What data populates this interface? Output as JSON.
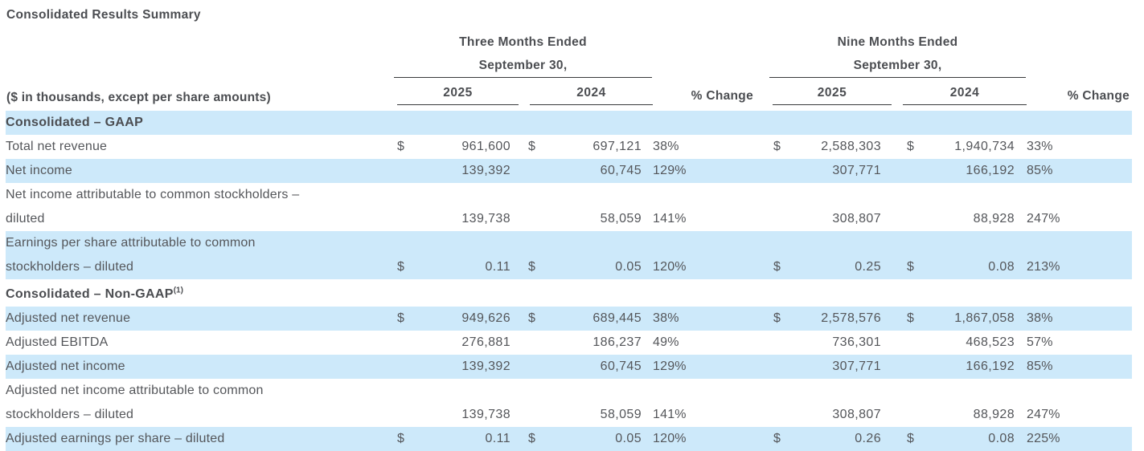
{
  "title": "Consolidated Results Summary",
  "row_label_header": "($ in thousands, except per share amounts)",
  "colors": {
    "stripe": "#cde9fa",
    "text": "#54565a",
    "heading_text": "#4b4d51",
    "rule": "#38393b"
  },
  "column_groups": [
    {
      "line1": "Three Months Ended",
      "line2": "September 30,",
      "years": [
        "2025",
        "2024"
      ],
      "pct_label": "% Change"
    },
    {
      "line1": "Nine Months Ended",
      "line2": "September 30,",
      "years": [
        "2025",
        "2024"
      ],
      "pct_label": "% Change"
    }
  ],
  "table": {
    "rows": [
      {
        "type": "section",
        "label": "Consolidated – GAAP",
        "sup": "",
        "shaded": true
      },
      {
        "type": "data",
        "label_lines": [
          "Total net revenue"
        ],
        "shaded": false,
        "cells": [
          "$",
          "961,600",
          "$",
          "697,121",
          "38%",
          "$",
          "2,588,303",
          "$",
          "1,940,734",
          "33%"
        ]
      },
      {
        "type": "data",
        "label_lines": [
          "Net income"
        ],
        "shaded": true,
        "cells": [
          "",
          "139,392",
          "",
          "60,745",
          "129%",
          "",
          "307,771",
          "",
          "166,192",
          "85%"
        ]
      },
      {
        "type": "data",
        "label_lines": [
          "Net income attributable to common stockholders –",
          "diluted"
        ],
        "shaded": false,
        "cells": [
          "",
          "139,738",
          "",
          "58,059",
          "141%",
          "",
          "308,807",
          "",
          "88,928",
          "247%"
        ]
      },
      {
        "type": "data",
        "label_lines": [
          "Earnings per share attributable to common",
          "stockholders – diluted"
        ],
        "shaded": true,
        "cells": [
          "$",
          "0.11",
          "$",
          "0.05",
          "120%",
          "$",
          "0.25",
          "$",
          "0.08",
          "213%"
        ]
      },
      {
        "type": "section",
        "label": "Consolidated – Non-GAAP",
        "sup": "(1)",
        "shaded": false
      },
      {
        "type": "data",
        "label_lines": [
          "Adjusted net revenue"
        ],
        "shaded": true,
        "cells": [
          "$",
          "949,626",
          "$",
          "689,445",
          "38%",
          "$",
          "2,578,576",
          "$",
          "1,867,058",
          "38%"
        ]
      },
      {
        "type": "data",
        "label_lines": [
          "Adjusted EBITDA"
        ],
        "shaded": false,
        "cells": [
          "",
          "276,881",
          "",
          "186,237",
          "49%",
          "",
          "736,301",
          "",
          "468,523",
          "57%"
        ]
      },
      {
        "type": "data",
        "label_lines": [
          "Adjusted net income"
        ],
        "shaded": true,
        "cells": [
          "",
          "139,392",
          "",
          "60,745",
          "129%",
          "",
          "307,771",
          "",
          "166,192",
          "85%"
        ]
      },
      {
        "type": "data",
        "label_lines": [
          "Adjusted net income attributable to common",
          "stockholders – diluted"
        ],
        "shaded": false,
        "cells": [
          "",
          "139,738",
          "",
          "58,059",
          "141%",
          "",
          "308,807",
          "",
          "88,928",
          "247%"
        ]
      },
      {
        "type": "data",
        "label_lines": [
          "Adjusted earnings per share – diluted"
        ],
        "shaded": true,
        "cells": [
          "$",
          "0.11",
          "$",
          "0.05",
          "120%",
          "$",
          "0.26",
          "$",
          "0.08",
          "225%"
        ]
      }
    ]
  }
}
